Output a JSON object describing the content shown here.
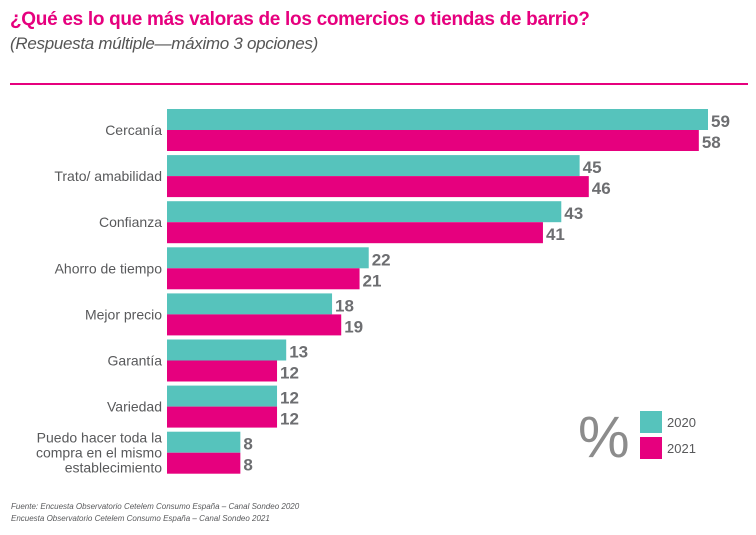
{
  "chart_data": {
    "type": "bar",
    "orientation": "horizontal",
    "title": "¿Qué es lo que más valoras de los comercios o tiendas de barrio?",
    "subtitle": "(Respuesta múltiple—máximo 3 opciones)",
    "categories": [
      "Cercanía",
      "Trato/ amabilidad",
      "Confianza",
      "Ahorro de tiempo",
      "Mejor precio",
      "Garantía",
      "Variedad",
      "Puedo hacer toda la compra en el mismo establecimiento"
    ],
    "category_lines": [
      [
        "Cercanía"
      ],
      [
        "Trato/ amabilidad"
      ],
      [
        "Confianza"
      ],
      [
        "Ahorro de tiempo"
      ],
      [
        "Mejor precio"
      ],
      [
        "Garantía"
      ],
      [
        "Variedad"
      ],
      [
        "Puedo hacer toda la",
        "compra en el mismo",
        "establecimiento"
      ]
    ],
    "series": [
      {
        "name": "2020",
        "color": "#56c3bc",
        "values": [
          59,
          45,
          43,
          22,
          18,
          13,
          12,
          8
        ]
      },
      {
        "name": "2021",
        "color": "#e6007e",
        "values": [
          58,
          46,
          41,
          21,
          19,
          12,
          12,
          8
        ]
      }
    ],
    "unit_symbol": "%",
    "xlim": [
      0,
      59
    ],
    "grid": false,
    "legend_position": "bottom-right",
    "xlabel": "",
    "ylabel": ""
  },
  "header": {
    "title": "¿Qué es lo que más valoras de los comercios o tiendas de barrio?",
    "subtitle": "(Respuesta múltiple—máximo 3 opciones)"
  },
  "footer": {
    "source_line1": "Fuente: Encuesta Observatorio Cetelem Consumo España – Canal Sondeo 2020",
    "source_line2": "Encuesta Observatorio Cetelem Consumo España – Canal Sondeo 2021"
  }
}
